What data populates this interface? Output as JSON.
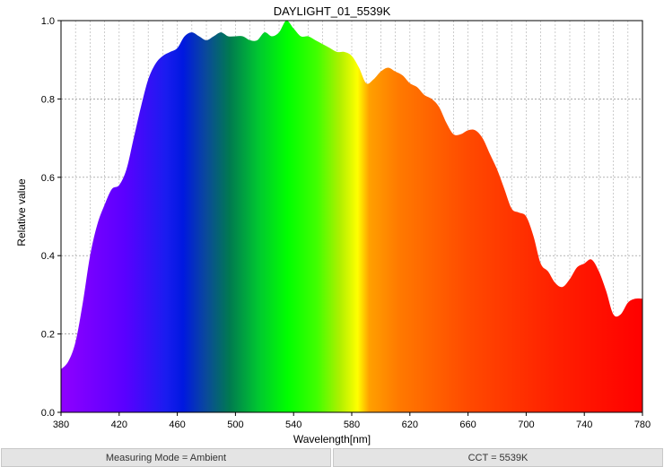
{
  "chart_data": {
    "type": "area",
    "title": "DAYLIGHT_01_5539K",
    "xlabel": "Wavelength[nm]",
    "ylabel": "Relative value",
    "xlim": [
      380,
      780
    ],
    "ylim": [
      0,
      1.0
    ],
    "xticks": [
      380,
      420,
      460,
      500,
      540,
      580,
      620,
      660,
      700,
      740,
      780
    ],
    "xtick_labels": [
      "380",
      "420",
      "460",
      "500",
      "540",
      "580",
      "620",
      "660",
      "700",
      "740",
      "780"
    ],
    "yticks": [
      0,
      0.2,
      0.4,
      0.6,
      0.8,
      1.0
    ],
    "ytick_labels": [
      "0.0",
      "0.2",
      "0.4",
      "0.6",
      "0.8",
      "1.0"
    ],
    "grid": true,
    "fill": "visible-spectrum",
    "x": [
      380,
      385,
      390,
      395,
      400,
      405,
      410,
      415,
      420,
      425,
      430,
      435,
      440,
      445,
      450,
      455,
      460,
      465,
      470,
      475,
      480,
      485,
      490,
      495,
      500,
      505,
      510,
      515,
      520,
      525,
      530,
      535,
      540,
      545,
      550,
      555,
      560,
      565,
      570,
      575,
      580,
      585,
      590,
      595,
      600,
      605,
      610,
      615,
      620,
      625,
      630,
      635,
      640,
      645,
      650,
      655,
      660,
      665,
      670,
      675,
      680,
      685,
      690,
      695,
      700,
      705,
      710,
      715,
      720,
      725,
      730,
      735,
      740,
      745,
      750,
      755,
      760,
      765,
      770,
      775,
      780
    ],
    "y": [
      0.11,
      0.13,
      0.18,
      0.28,
      0.4,
      0.48,
      0.53,
      0.57,
      0.58,
      0.62,
      0.7,
      0.78,
      0.85,
      0.89,
      0.91,
      0.92,
      0.93,
      0.96,
      0.97,
      0.96,
      0.95,
      0.96,
      0.97,
      0.96,
      0.96,
      0.96,
      0.95,
      0.95,
      0.97,
      0.96,
      0.97,
      1.0,
      0.98,
      0.96,
      0.96,
      0.95,
      0.94,
      0.93,
      0.92,
      0.92,
      0.91,
      0.88,
      0.84,
      0.85,
      0.87,
      0.88,
      0.87,
      0.86,
      0.84,
      0.83,
      0.81,
      0.8,
      0.78,
      0.74,
      0.71,
      0.71,
      0.72,
      0.72,
      0.7,
      0.66,
      0.62,
      0.57,
      0.52,
      0.51,
      0.5,
      0.45,
      0.38,
      0.36,
      0.33,
      0.32,
      0.34,
      0.37,
      0.38,
      0.39,
      0.36,
      0.31,
      0.25,
      0.25,
      0.28,
      0.29,
      0.29
    ]
  },
  "status_bar": {
    "measuring_mode": "Measuring Mode = Ambient",
    "cct": "CCT = 5539K"
  }
}
